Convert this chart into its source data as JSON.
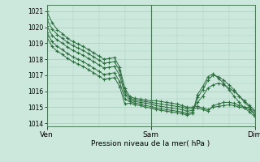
{
  "xlabel": "Pression niveau de la mer( hPa )",
  "background_color": "#cce8dd",
  "grid_color": "#aaccbb",
  "line_color": "#2d6e3e",
  "marker_color": "#2d6e3e",
  "ylim": [
    1013.8,
    1021.4
  ],
  "yticks": [
    1014,
    1015,
    1016,
    1017,
    1018,
    1019,
    1020,
    1021
  ],
  "xtick_labels": [
    "Ven",
    "Sam",
    "Dim"
  ],
  "xtick_positions": [
    0,
    1,
    2
  ],
  "series": [
    [
      1021.0,
      1020.3,
      1019.85,
      1019.6,
      1019.3,
      1019.1,
      1018.95,
      1018.8,
      1018.6,
      1018.4,
      1018.2,
      1018.0,
      1018.05,
      1018.1,
      1017.5,
      1016.2,
      1015.65,
      1015.55,
      1015.5,
      1015.45,
      1015.4,
      1015.4,
      1015.35,
      1015.3,
      1015.25,
      1015.2,
      1015.1,
      1015.0,
      1015.0,
      1015.05,
      1014.95,
      1014.85,
      1015.0,
      1015.05,
      1015.1,
      1015.15,
      1015.1,
      1015.0,
      1014.95,
      1015.0,
      1014.5
    ],
    [
      1020.5,
      1019.9,
      1019.55,
      1019.3,
      1019.05,
      1018.85,
      1018.7,
      1018.55,
      1018.35,
      1018.15,
      1017.95,
      1017.75,
      1017.8,
      1017.85,
      1017.3,
      1016.0,
      1015.55,
      1015.45,
      1015.4,
      1015.35,
      1015.3,
      1015.25,
      1015.2,
      1015.15,
      1015.1,
      1015.05,
      1015.0,
      1014.9,
      1014.9,
      1014.95,
      1014.85,
      1014.75,
      1015.1,
      1015.2,
      1015.3,
      1015.3,
      1015.25,
      1015.1,
      1015.0,
      1014.85,
      1014.55
    ],
    [
      1020.1,
      1019.5,
      1019.2,
      1019.0,
      1018.75,
      1018.55,
      1018.4,
      1018.25,
      1018.05,
      1017.85,
      1017.65,
      1017.45,
      1017.5,
      1017.55,
      1017.0,
      1015.8,
      1015.45,
      1015.35,
      1015.3,
      1015.25,
      1015.2,
      1015.1,
      1015.05,
      1015.0,
      1014.95,
      1014.9,
      1014.85,
      1014.75,
      1014.8,
      1015.3,
      1015.7,
      1016.2,
      1016.4,
      1016.5,
      1016.4,
      1016.2,
      1016.0,
      1015.7,
      1015.4,
      1015.1,
      1014.8
    ],
    [
      1019.7,
      1019.1,
      1018.8,
      1018.6,
      1018.35,
      1018.15,
      1018.0,
      1017.85,
      1017.65,
      1017.45,
      1017.25,
      1017.05,
      1017.1,
      1017.15,
      1016.6,
      1015.5,
      1015.35,
      1015.25,
      1015.2,
      1015.1,
      1015.05,
      1014.95,
      1014.9,
      1014.85,
      1014.8,
      1014.75,
      1014.7,
      1014.6,
      1014.7,
      1015.6,
      1016.1,
      1016.7,
      1017.0,
      1016.9,
      1016.7,
      1016.4,
      1016.1,
      1015.7,
      1015.3,
      1015.0,
      1014.7
    ],
    [
      1019.4,
      1018.8,
      1018.5,
      1018.3,
      1018.05,
      1017.85,
      1017.7,
      1017.55,
      1017.35,
      1017.15,
      1016.95,
      1016.75,
      1016.8,
      1016.85,
      1016.3,
      1015.2,
      1015.25,
      1015.15,
      1015.1,
      1015.0,
      1014.95,
      1014.85,
      1014.8,
      1014.75,
      1014.7,
      1014.65,
      1014.6,
      1014.5,
      1014.6,
      1015.8,
      1016.3,
      1016.9,
      1017.1,
      1016.8,
      1016.5,
      1016.1,
      1015.7,
      1015.3,
      1014.95,
      1014.7,
      1014.4
    ]
  ]
}
